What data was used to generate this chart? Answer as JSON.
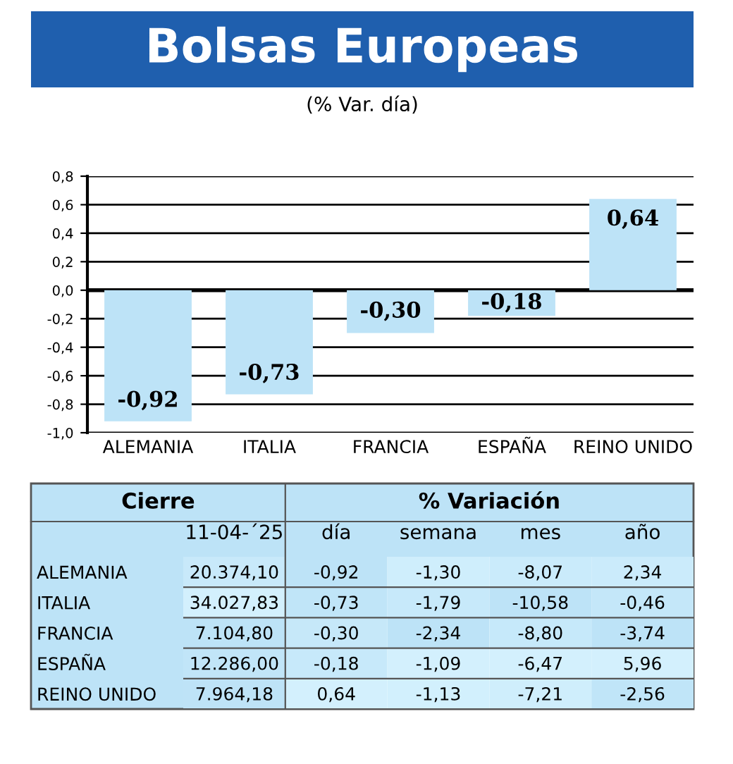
{
  "chart_data": [
    {
      "type": "bar",
      "title": "Bolsas Europeas",
      "subtitle": "(% Var. día)",
      "categories": [
        "ALEMANIA",
        "ITALIA",
        "FRANCIA",
        "ESPAÑA",
        "REINO UNIDO"
      ],
      "values": [
        -0.92,
        -0.73,
        -0.3,
        -0.18,
        0.64
      ],
      "value_labels": [
        "-0,92",
        "-0,73",
        "-0,30",
        "-0,18",
        "0,64"
      ],
      "color": "#bde3f7",
      "ylim": [
        -1.0,
        0.8
      ],
      "yticks": [
        {
          "value": -1.0,
          "label": "-1,0"
        },
        {
          "value": -0.8,
          "label": "-0,8"
        },
        {
          "value": -0.6,
          "label": "-0,6"
        },
        {
          "value": -0.4,
          "label": "-0,4"
        },
        {
          "value": -0.2,
          "label": "-0,2"
        },
        {
          "value": 0.0,
          "label": "0,0"
        },
        {
          "value": 0.2,
          "label": "0,2"
        },
        {
          "value": 0.4,
          "label": "0,4"
        },
        {
          "value": 0.6,
          "label": "0,6"
        },
        {
          "value": 0.8,
          "label": "0,8"
        }
      ],
      "grid": "y"
    },
    {
      "type": "heatmap",
      "annotations": [
        "Cierre",
        "% Variación"
      ],
      "categories": [
        "11-04-´25",
        "día",
        "semana",
        "mes",
        "año"
      ],
      "y_categories": [
        "ALEMANIA",
        "ITALIA",
        "FRANCIA",
        "ESPAÑA",
        "REINO UNIDO"
      ],
      "color": "#bde3f7",
      "cells": [
        [
          20374.1,
          -0.92,
          -1.3,
          -8.07,
          2.34
        ],
        [
          34027.83,
          -0.73,
          -1.79,
          -10.58,
          -0.46
        ],
        [
          7104.8,
          -0.3,
          -2.34,
          -8.8,
          -3.74
        ],
        [
          12286.0,
          -0.18,
          -1.09,
          -6.47,
          5.96
        ],
        [
          7964.18,
          0.64,
          -1.13,
          -7.21,
          -2.56
        ]
      ],
      "cell_labels": [
        [
          "20.374,10",
          "-0,92",
          "-1,30",
          "-8,07",
          "2,34"
        ],
        [
          "34.027,83",
          "-0,73",
          "-1,79",
          "-10,58",
          "-0,46"
        ],
        [
          "7.104,80",
          "-0,30",
          "-2,34",
          "-8,80",
          "-3,74"
        ],
        [
          "12.286,00",
          "-0,18",
          "-1,09",
          "-6,47",
          "5,96"
        ],
        [
          "7.964,18",
          "0,64",
          "-1,13",
          "-7,21",
          "-2,56"
        ]
      ]
    }
  ]
}
